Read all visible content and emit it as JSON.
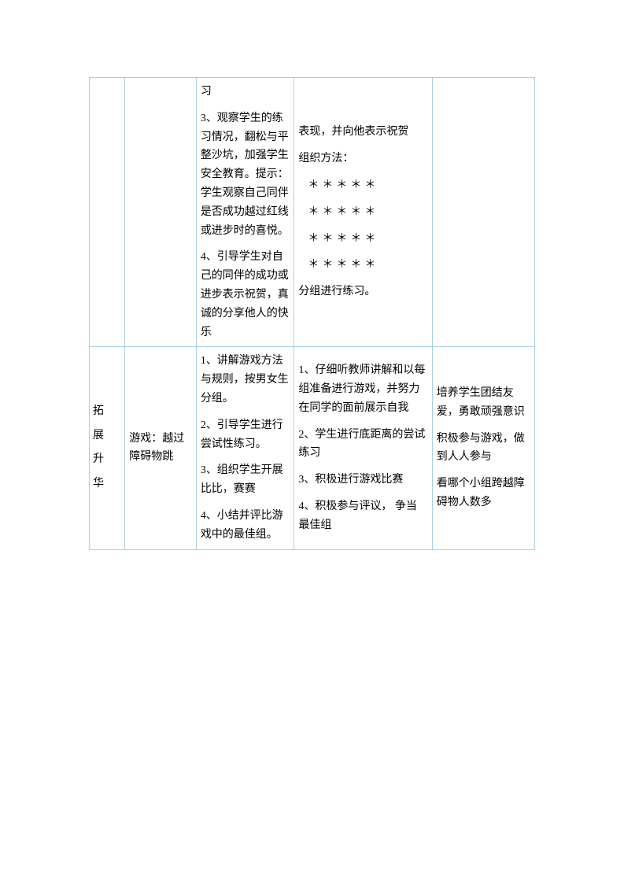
{
  "table": {
    "border_color": "#a8cfe8",
    "background_color": "#ffffff",
    "text_color": "#000000",
    "font_size_pt": 10.5,
    "columns": [
      "col1",
      "col2",
      "col3",
      "col4",
      "col5"
    ],
    "column_widths_pct": [
      8,
      16,
      22,
      31,
      23
    ],
    "rows": [
      {
        "c1": "",
        "c2": "",
        "c3": {
          "p1": "习",
          "p2": "3、观察学生的练习情况，翻松与平整沙坑，加强学生安全教育。提示：学生观察自己同伴是否成功越过红线或进步时的喜悦。",
          "p3": "4、引导学生对自己的同伴的成功或进步表示祝贺，真诚的分享他人的快乐"
        },
        "c4": {
          "p1": "表现，并向他表示祝贺",
          "p2": "组织方法：",
          "s1": "＊＊＊＊＊",
          "s2": "＊＊＊＊＊",
          "s3": "＊＊＊＊＊",
          "s4": "＊＊＊＊＊",
          "p3": "分组进行练习。"
        },
        "c5": ""
      },
      {
        "c1": {
          "l1": "拓",
          "l2": "展",
          "l3": "升",
          "l4": "华"
        },
        "c2": "游戏：越过障碍物跳",
        "c3": {
          "p1": "1、讲解游戏方法与规则，按男女生分组。",
          "p2": "2、引导学生进行尝试性练习。",
          "p3": "3、组织学生开展比比，赛赛",
          "p4": "4、小结并评比游戏中的最佳组。"
        },
        "c4": {
          "p1": "1、仔细听教师讲解和以每组准备进行游戏，并努力在同学的面前展示自我",
          "p2": "2、学生进行底距离的尝试练习",
          "p3": "3、积极进行游戏比赛",
          "p4": "4、积极参与评议， 争当最佳组"
        },
        "c5": {
          "p1": "培养学生团结友爱，勇敢顽强意识",
          "p2": "积极参与游戏，做到人人参与",
          "p3": "看哪个小组跨越障碍物人数多"
        }
      }
    ]
  }
}
